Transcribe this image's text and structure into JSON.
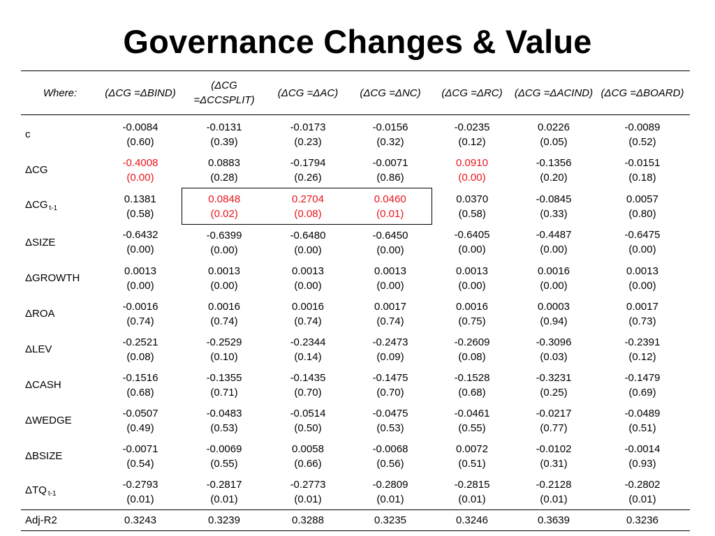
{
  "title": "Governance Changes & Value",
  "table": {
    "corner_label": "Where:",
    "columns": [
      {
        "line1": "(ΔCG =",
        "line2": "ΔBIND)"
      },
      {
        "line1": "(ΔCG =",
        "line2": "ΔCCSPLIT)"
      },
      {
        "line1": "(ΔCG =",
        "line2": "ΔAC)"
      },
      {
        "line1": "(ΔCG =",
        "line2": "ΔNC)"
      },
      {
        "line1": "(ΔCG =",
        "line2": "ΔRC)"
      },
      {
        "line1": "(ΔCG =",
        "line2": "ΔACIND)"
      },
      {
        "line1": "(ΔCG =",
        "line2": "ΔBOARD)"
      }
    ],
    "rows": [
      {
        "label": "c",
        "sub": "",
        "cells": [
          {
            "coef": "-0.0084",
            "p": "(0.60)"
          },
          {
            "coef": "-0.0131",
            "p": "(0.39)"
          },
          {
            "coef": "-0.0173",
            "p": "(0.23)"
          },
          {
            "coef": "-0.0156",
            "p": "(0.32)"
          },
          {
            "coef": "-0.0235",
            "p": "(0.12)"
          },
          {
            "coef": "0.0226",
            "p": "(0.05)"
          },
          {
            "coef": "-0.0089",
            "p": "(0.52)"
          }
        ]
      },
      {
        "label": "ΔCG",
        "sub": "",
        "cells": [
          {
            "coef": "-0.4008",
            "p": "(0.00)",
            "highlight": true
          },
          {
            "coef": "0.0883",
            "p": "(0.28)"
          },
          {
            "coef": "-0.1794",
            "p": "(0.26)"
          },
          {
            "coef": "-0.0071",
            "p": "(0.86)"
          },
          {
            "coef": "0.0910",
            "p": "(0.00)",
            "highlight": true
          },
          {
            "coef": "-0.1356",
            "p": "(0.20)"
          },
          {
            "coef": "-0.0151",
            "p": "(0.18)"
          }
        ]
      },
      {
        "label": "ΔCG",
        "sub": "t-1",
        "cells": [
          {
            "coef": "0.1381",
            "p": "(0.58)"
          },
          {
            "coef": "0.0848",
            "p": "(0.02)",
            "highlight": true,
            "box": "left"
          },
          {
            "coef": "0.2704",
            "p": "(0.08)",
            "highlight": true,
            "box": "mid"
          },
          {
            "coef": "0.0460",
            "p": "(0.01)",
            "highlight": true,
            "box": "right"
          },
          {
            "coef": "0.0370",
            "p": "(0.58)"
          },
          {
            "coef": "-0.0845",
            "p": "(0.33)"
          },
          {
            "coef": "0.0057",
            "p": "(0.80)"
          }
        ]
      },
      {
        "label": "ΔSIZE",
        "sub": "",
        "cells": [
          {
            "coef": "-0.6432",
            "p": "(0.00)"
          },
          {
            "coef": "-0.6399",
            "p": "(0.00)"
          },
          {
            "coef": "-0.6480",
            "p": "(0.00)"
          },
          {
            "coef": "-0.6450",
            "p": "(0.00)"
          },
          {
            "coef": "-0.6405",
            "p": "(0.00)"
          },
          {
            "coef": "-0.4487",
            "p": "(0.00)"
          },
          {
            "coef": "-0.6475",
            "p": "(0.00)"
          }
        ]
      },
      {
        "label": "ΔGROWTH",
        "sub": "",
        "cells": [
          {
            "coef": "0.0013",
            "p": "(0.00)"
          },
          {
            "coef": "0.0013",
            "p": "(0.00)"
          },
          {
            "coef": "0.0013",
            "p": "(0.00)"
          },
          {
            "coef": "0.0013",
            "p": "(0.00)"
          },
          {
            "coef": "0.0013",
            "p": "(0.00)"
          },
          {
            "coef": "0.0016",
            "p": "(0.00)"
          },
          {
            "coef": "0.0013",
            "p": "(0.00)"
          }
        ]
      },
      {
        "label": "ΔROA",
        "sub": "",
        "cells": [
          {
            "coef": "-0.0016",
            "p": "(0.74)"
          },
          {
            "coef": "0.0016",
            "p": "(0.74)"
          },
          {
            "coef": "0.0016",
            "p": "(0.74)"
          },
          {
            "coef": "0.0017",
            "p": "(0.74)"
          },
          {
            "coef": "0.0016",
            "p": "(0.75)"
          },
          {
            "coef": "0.0003",
            "p": "(0.94)"
          },
          {
            "coef": "0.0017",
            "p": "(0.73)"
          }
        ]
      },
      {
        "label": "ΔLEV",
        "sub": "",
        "cells": [
          {
            "coef": "-0.2521",
            "p": "(0.08)"
          },
          {
            "coef": "-0.2529",
            "p": "(0.10)"
          },
          {
            "coef": "-0.2344",
            "p": "(0.14)"
          },
          {
            "coef": "-0.2473",
            "p": "(0.09)"
          },
          {
            "coef": "-0.2609",
            "p": "(0.08)"
          },
          {
            "coef": "-0.3096",
            "p": "(0.03)"
          },
          {
            "coef": "-0.2391",
            "p": "(0.12)"
          }
        ]
      },
      {
        "label": "ΔCASH",
        "sub": "",
        "cells": [
          {
            "coef": "-0.1516",
            "p": "(0.68)"
          },
          {
            "coef": "-0.1355",
            "p": "(0.71)"
          },
          {
            "coef": "-0.1435",
            "p": "(0.70)"
          },
          {
            "coef": "-0.1475",
            "p": "(0.70)"
          },
          {
            "coef": "-0.1528",
            "p": "(0.68)"
          },
          {
            "coef": "-0.3231",
            "p": "(0.25)"
          },
          {
            "coef": "-0.1479",
            "p": "(0.69)"
          }
        ]
      },
      {
        "label": "ΔWEDGE",
        "sub": "",
        "cells": [
          {
            "coef": "-0.0507",
            "p": "(0.49)"
          },
          {
            "coef": "-0.0483",
            "p": "(0.53)"
          },
          {
            "coef": "-0.0514",
            "p": "(0.50)"
          },
          {
            "coef": "-0.0475",
            "p": "(0.53)"
          },
          {
            "coef": "-0.0461",
            "p": "(0.55)"
          },
          {
            "coef": "-0.0217",
            "p": "(0.77)"
          },
          {
            "coef": "-0.0489",
            "p": "(0.51)"
          }
        ]
      },
      {
        "label": "ΔBSIZE",
        "sub": "",
        "cells": [
          {
            "coef": "-0.0071",
            "p": "(0.54)"
          },
          {
            "coef": "-0.0069",
            "p": "(0.55)"
          },
          {
            "coef": "0.0058",
            "p": "(0.66)"
          },
          {
            "coef": "-0.0068",
            "p": "(0.56)"
          },
          {
            "coef": "0.0072",
            "p": "(0.51)"
          },
          {
            "coef": "-0.0102",
            "p": "(0.31)"
          },
          {
            "coef": "-0.0014",
            "p": "(0.93)"
          }
        ]
      },
      {
        "label": "ΔTQ",
        "sub": "t-1",
        "cells": [
          {
            "coef": "-0.2793",
            "p": "(0.01)"
          },
          {
            "coef": "-0.2817",
            "p": "(0.01)"
          },
          {
            "coef": "-0.2773",
            "p": "(0.01)"
          },
          {
            "coef": "-0.2809",
            "p": "(0.01)"
          },
          {
            "coef": "-0.2815",
            "p": "(0.01)"
          },
          {
            "coef": "-0.2128",
            "p": "(0.01)"
          },
          {
            "coef": "-0.2802",
            "p": "(0.01)"
          }
        ]
      }
    ],
    "footer": {
      "label": "Adj-R2",
      "values": [
        "0.3243",
        "0.3239",
        "0.3288",
        "0.3235",
        "0.3246",
        "0.3639",
        "0.3236"
      ]
    },
    "colors": {
      "highlight": "#e8141b",
      "text": "#000000",
      "rule": "#000000"
    }
  }
}
